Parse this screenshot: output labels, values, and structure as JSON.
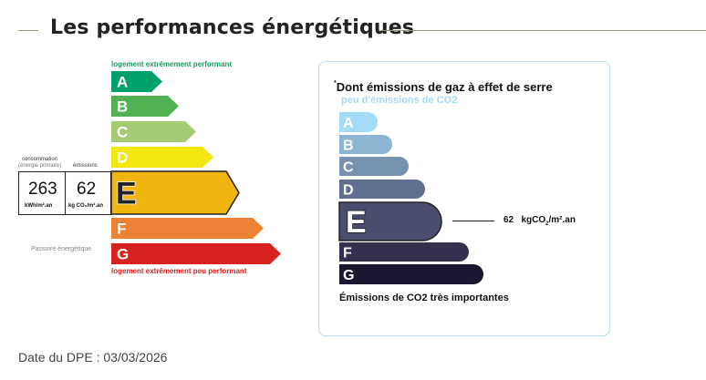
{
  "section": {
    "title": "Les performances énergétiques"
  },
  "dpe": {
    "top_note": "logement extrêmement performant",
    "bottom_note": "logement extrêmement peu performant",
    "consumption_label": "consommation",
    "consumption_sub": "(énergie primaire)",
    "emissions_label": "émissions",
    "passoire_label": "Passoire énergétique",
    "consumption_value": "263",
    "consumption_unit": "kWh/m².an",
    "emissions_value": "62",
    "emissions_unit": "kg CO₂/m².an",
    "current_class": "E",
    "classes": [
      {
        "letter": "A",
        "color": "#00a06b"
      },
      {
        "letter": "B",
        "color": "#52b153"
      },
      {
        "letter": "C",
        "color": "#a5cc74"
      },
      {
        "letter": "D",
        "color": "#f4e70f"
      },
      {
        "letter": "E",
        "color": "#f0b50f"
      },
      {
        "letter": "F",
        "color": "#eb8235"
      },
      {
        "letter": "G",
        "color": "#d7221f"
      }
    ]
  },
  "ges": {
    "title": "Dont émissions de gaz à effet de serre",
    "title_mark": "*",
    "top_note": "peu d'émissions de CO2",
    "bottom_note": "Émissions de CO2 très importantes",
    "value": "62",
    "unit_prefix": "kgCO",
    "unit_sub": "2",
    "unit_suffix": "/m².an",
    "current_class": "E",
    "classes": [
      {
        "letter": "A",
        "color": "#a4dbf8"
      },
      {
        "letter": "B",
        "color": "#8cb4d3"
      },
      {
        "letter": "C",
        "color": "#7792b1"
      },
      {
        "letter": "D",
        "color": "#616f8f"
      },
      {
        "letter": "E",
        "color": "#4b4d6f"
      },
      {
        "letter": "F",
        "color": "#34304f"
      },
      {
        "letter": "G",
        "color": "#1d1630"
      }
    ]
  },
  "footer": {
    "date_label": "Date du DPE : 03/03/2026"
  }
}
